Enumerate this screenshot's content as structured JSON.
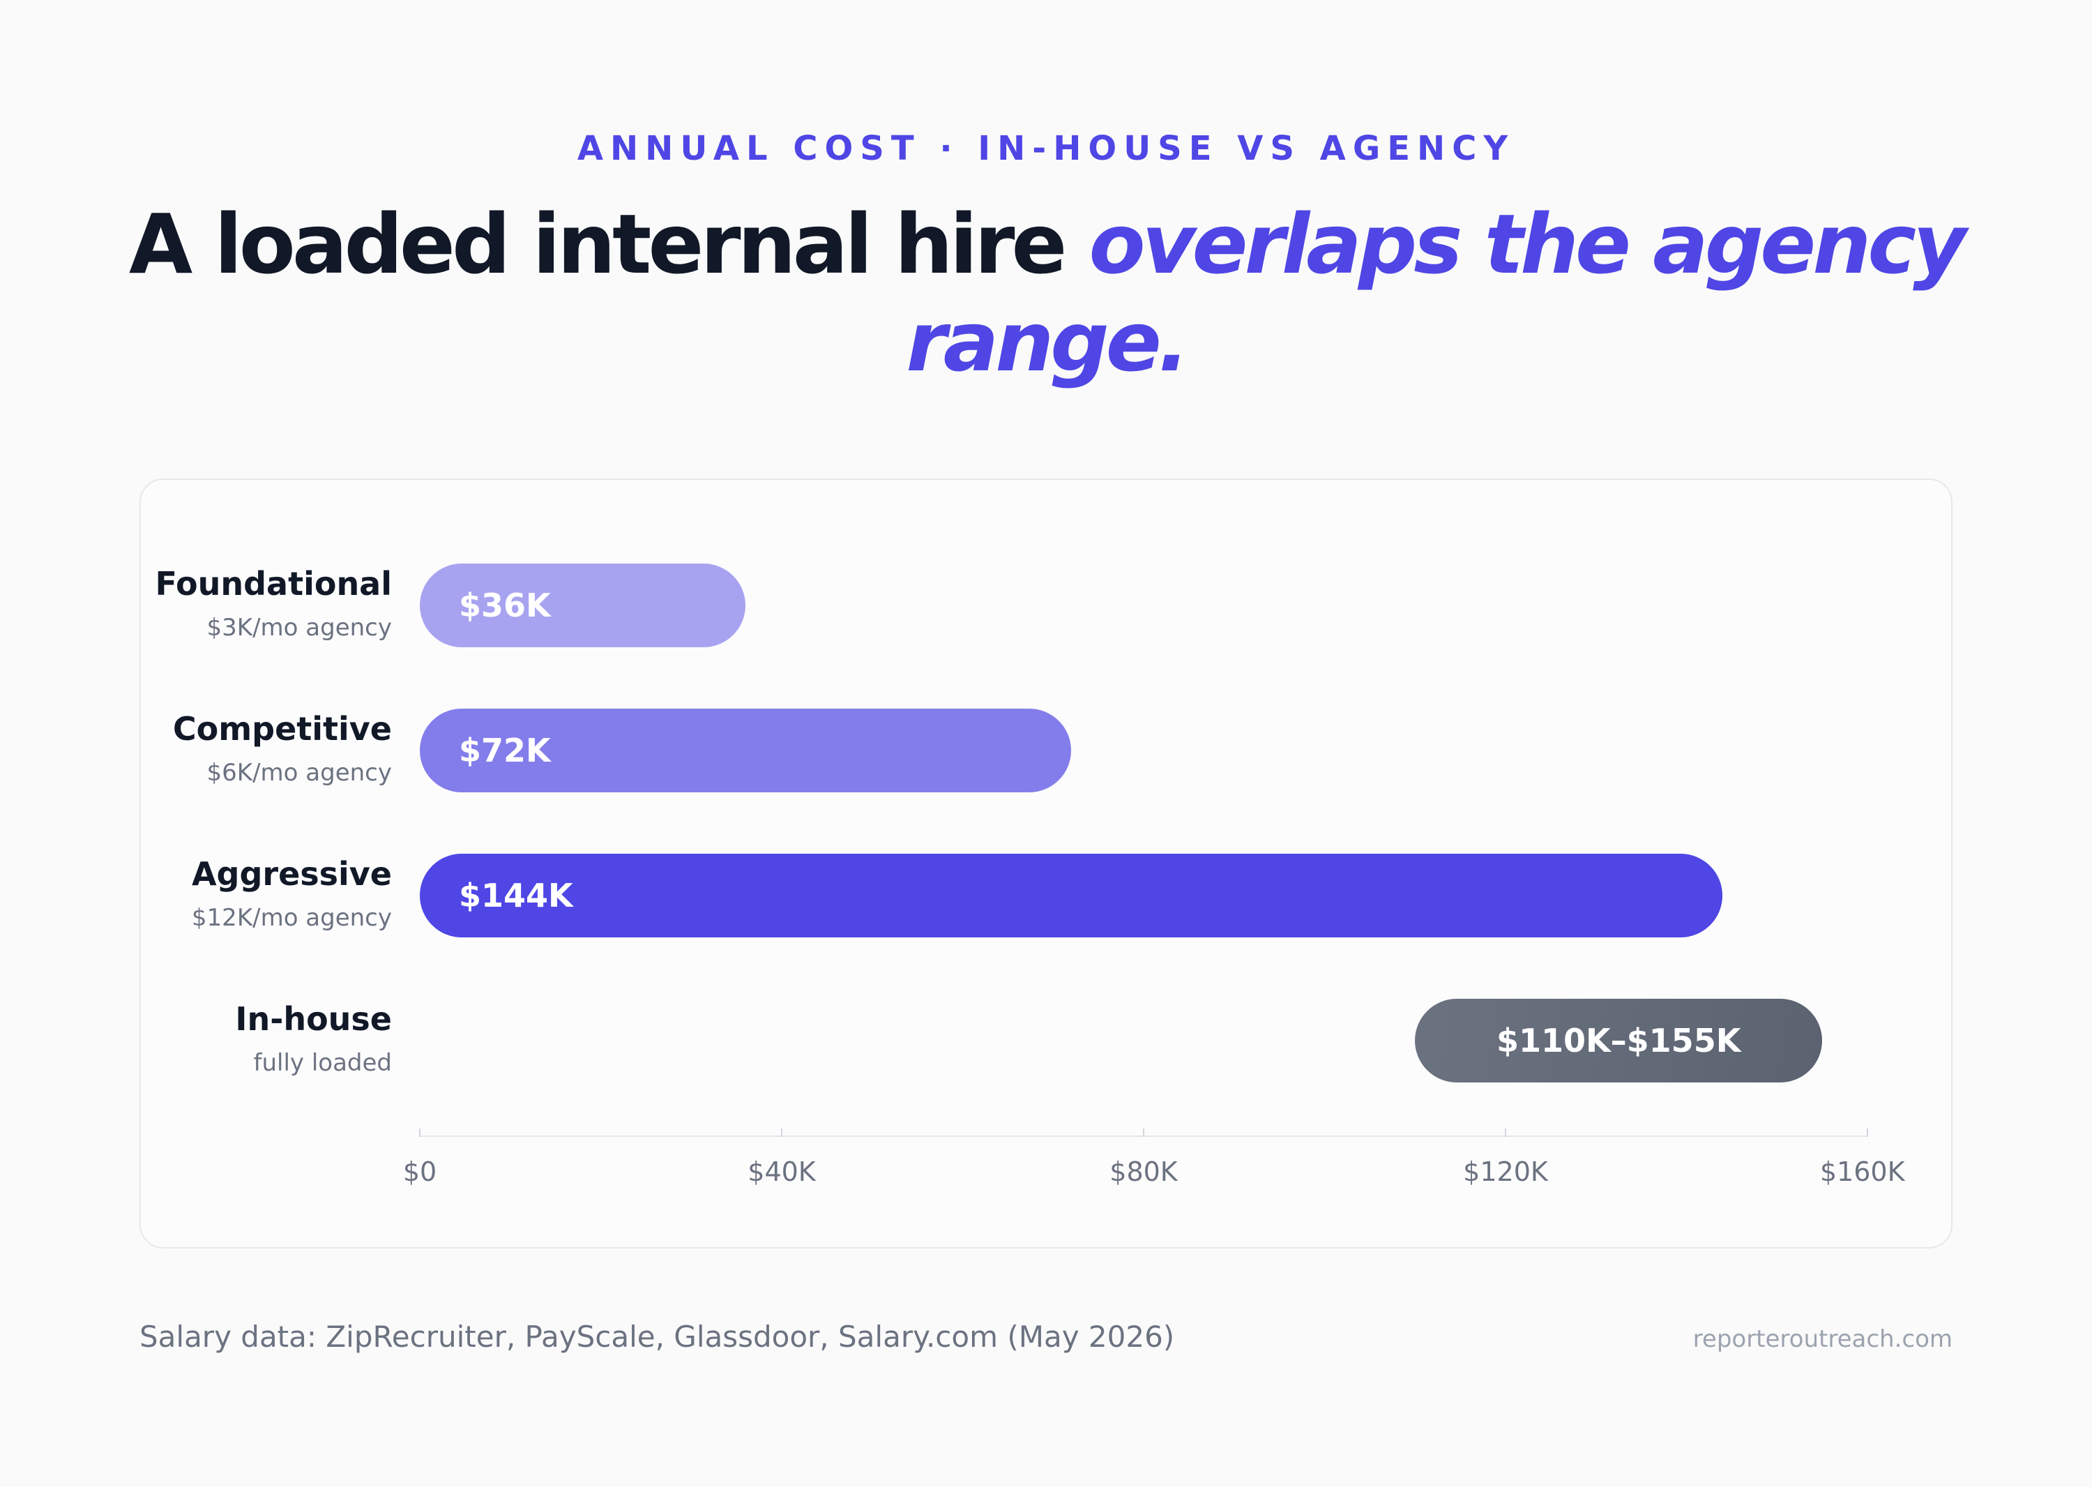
{
  "eyebrow": "ANNUAL COST · IN-HOUSE VS AGENCY",
  "headline": {
    "plain": "A loaded internal hire ",
    "accent": "overlaps the agency range."
  },
  "chart_data": {
    "type": "bar",
    "orientation": "horizontal",
    "xlim": [
      0,
      160000
    ],
    "x_ticks": [
      0,
      40000,
      80000,
      120000,
      160000
    ],
    "x_tick_labels": [
      "$0",
      "$40K",
      "$80K",
      "$120K",
      "$160K"
    ],
    "rows": [
      {
        "name": "Foundational",
        "sub": "$3K/mo agency",
        "start": 0,
        "end": 36000,
        "label": "$36K",
        "color": "#a8a3f0"
      },
      {
        "name": "Competitive",
        "sub": "$6K/mo agency",
        "start": 0,
        "end": 72000,
        "label": "$72K",
        "color": "#837deb"
      },
      {
        "name": "Aggressive",
        "sub": "$12K/mo agency",
        "start": 0,
        "end": 144000,
        "label": "$144K",
        "color": "#4f46e5"
      },
      {
        "name": "In-house",
        "sub": "fully loaded",
        "start": 110000,
        "end": 155000,
        "label": "$110K–$155K",
        "color": "#5b6270"
      }
    ]
  },
  "footer": {
    "source": "Salary data: ZipRecruiter, PayScale, Glassdoor, Salary.com (May 2026)",
    "site": "reporteroutreach.com"
  }
}
